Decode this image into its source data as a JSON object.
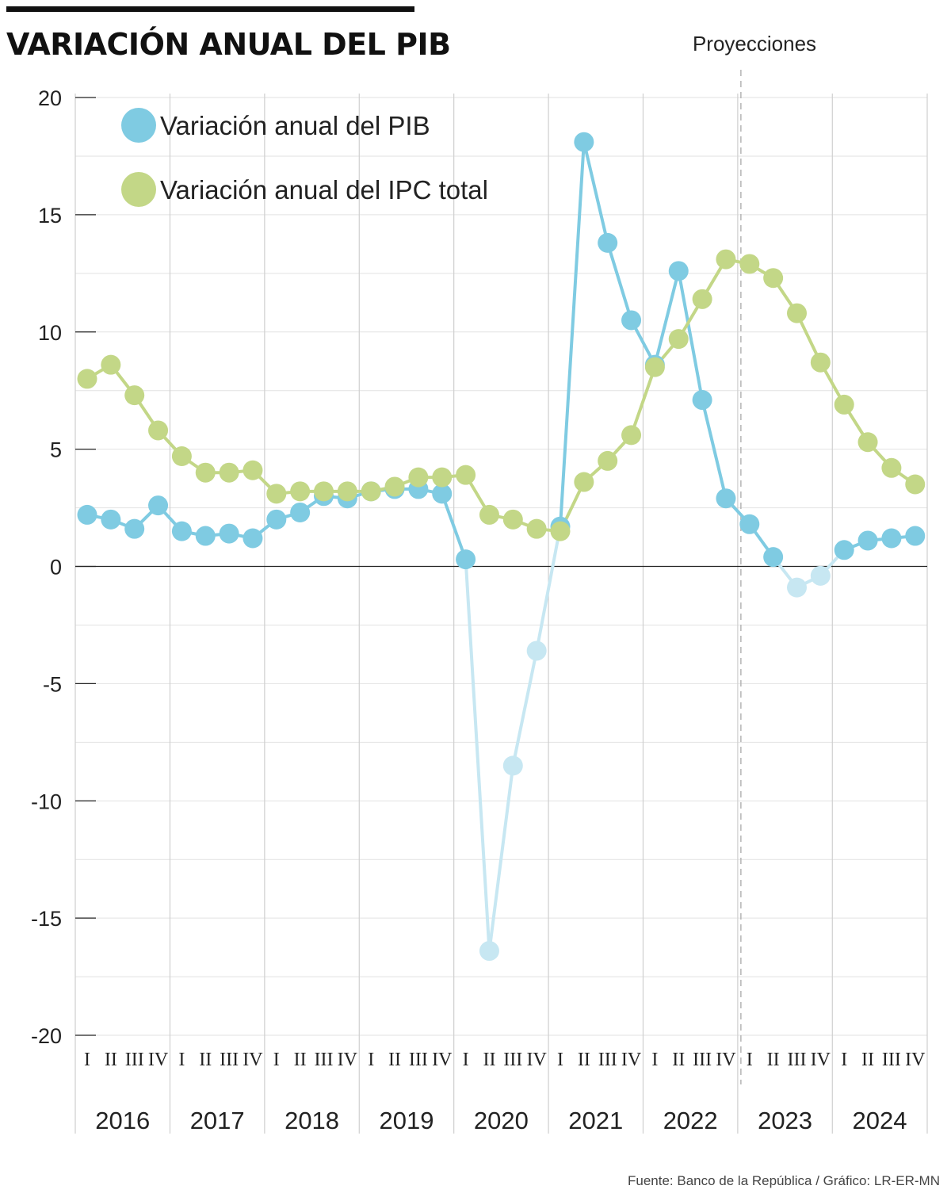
{
  "title": "VARIACIÓN ANUAL DEL PIB",
  "source": "Fuente: Banco de la República / Gráfico: LR-ER-MN",
  "projection_label": "Proyecciones",
  "colors": {
    "pib": "#7fcbe2",
    "pib_light": "#c7e7f2",
    "ipc": "#c3d787",
    "axis": "#222222",
    "grid": "#e2e2e2",
    "separator": "#cfcfcf"
  },
  "chart_data": {
    "type": "line",
    "title": "VARIACIÓN ANUAL DEL PIB",
    "ylim": [
      -20,
      20
    ],
    "yticks": [
      20,
      15,
      10,
      5,
      0,
      -5,
      -10,
      -15,
      -20
    ],
    "years": [
      "2016",
      "2017",
      "2018",
      "2019",
      "2020",
      "2021",
      "2022",
      "2023",
      "2024"
    ],
    "quarters": [
      "I",
      "II",
      "III",
      "IV"
    ],
    "projection_start_index": 28,
    "legend_position": "top-left",
    "series": [
      {
        "name": "Variación anual del PIB",
        "color": "#7fcbe2",
        "values": [
          2.2,
          2.0,
          1.6,
          2.6,
          1.5,
          1.3,
          1.4,
          1.2,
          2.0,
          2.3,
          3.0,
          2.9,
          3.2,
          3.3,
          3.3,
          3.1,
          0.3,
          -16.4,
          -8.5,
          -3.6,
          1.7,
          18.1,
          13.8,
          10.5,
          8.6,
          12.6,
          7.1,
          2.9,
          1.8,
          0.4,
          -0.9,
          -0.4,
          0.7,
          1.1,
          1.2,
          1.3
        ]
      },
      {
        "name": "Variación anual del IPC total",
        "color": "#c3d787",
        "values": [
          8.0,
          8.6,
          7.3,
          5.8,
          4.7,
          4.0,
          4.0,
          4.1,
          3.1,
          3.2,
          3.2,
          3.2,
          3.2,
          3.4,
          3.8,
          3.8,
          3.9,
          2.2,
          2.0,
          1.6,
          1.5,
          3.6,
          4.5,
          5.6,
          8.5,
          9.7,
          11.4,
          13.1,
          12.9,
          12.3,
          10.8,
          8.7,
          6.9,
          5.3,
          4.2,
          3.5
        ]
      }
    ]
  }
}
